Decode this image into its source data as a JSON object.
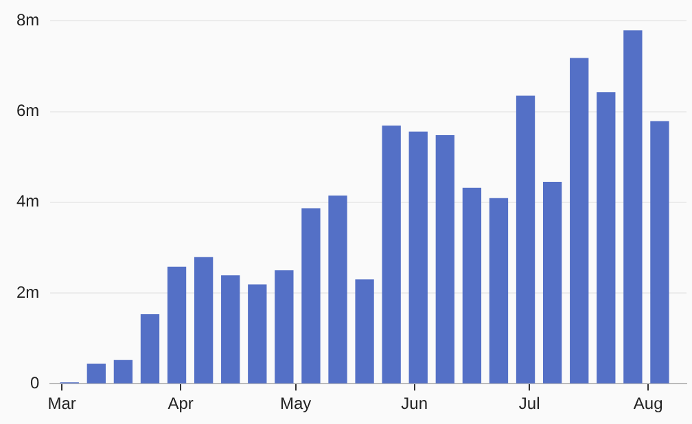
{
  "chart_data": {
    "type": "bar",
    "x": [
      "--03-03",
      "--03-10",
      "--03-17",
      "--03-24",
      "--03-31",
      "--04-07",
      "--04-14",
      "--04-21",
      "--04-28",
      "--05-05",
      "--05-12",
      "--05-19",
      "--05-26",
      "--06-02",
      "--06-09",
      "--06-16",
      "--06-23",
      "--06-30",
      "--07-07",
      "--07-14",
      "--07-21",
      "--07-28",
      "--08-04"
    ],
    "values": [
      20000,
      430000,
      510000,
      1520000,
      2570000,
      2780000,
      2380000,
      2180000,
      2490000,
      3860000,
      4140000,
      2290000,
      5680000,
      5550000,
      5470000,
      4310000,
      4080000,
      6340000,
      4440000,
      7170000,
      6420000,
      7780000,
      5780000
    ],
    "color": "#5470c6",
    "xlim": [
      "--02-26",
      "--08-11"
    ],
    "xticks": [
      {
        "value": "--03-01",
        "label": "Mar"
      },
      {
        "value": "--04-01",
        "label": "Apr"
      },
      {
        "value": "--05-01",
        "label": "May"
      },
      {
        "value": "--06-01",
        "label": "Jun"
      },
      {
        "value": "--07-01",
        "label": "Jul"
      },
      {
        "value": "--08-01",
        "label": "Aug"
      }
    ],
    "ylim": [
      0,
      8000000
    ],
    "yticks": [
      {
        "value": 0,
        "label": "0"
      },
      {
        "value": 2000000,
        "label": "2m"
      },
      {
        "value": 4000000,
        "label": "4m"
      },
      {
        "value": 6000000,
        "label": "6m"
      },
      {
        "value": 8000000,
        "label": "8m"
      }
    ],
    "grid": "y"
  }
}
